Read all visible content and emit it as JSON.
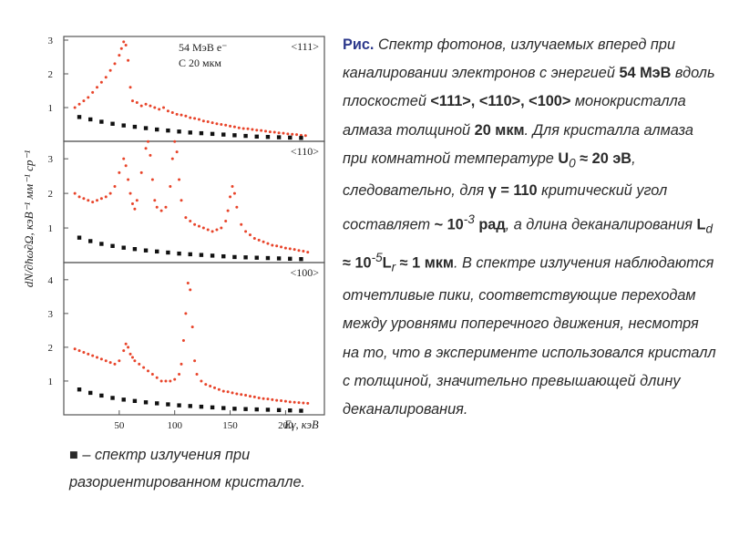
{
  "caption": {
    "head": "Рис.",
    "t1": " Спектр фотонов, излучаемых вперед при каналировании электронов с энергией ",
    "energy": "54 МэВ",
    "t2": " вдоль плоскостей ",
    "planes": "<111>, <110>, <100>",
    "t3": " монокристалла алмаза толщиной ",
    "thickness": "20 мкм",
    "t4": ". Для кристалла алмаза при комнатной температуре ",
    "u_sym": "U",
    "u_sub": "0",
    "u_val": " ≈ 20 эВ",
    "t5": ", следовательно, для ",
    "gamma": "γ = 110",
    "t6": " критический угол составляет ",
    "angle": "~ 10",
    "angle_exp": "-3",
    "angle_unit": " рад",
    "t7": ", а длина деканалирования ",
    "ld_sym": "L",
    "ld_sub": "d",
    "ld_mid": " ≈ 10",
    "ld_exp": "-5",
    "lr_sym": "L",
    "lr_sub": "r",
    "ld_val": " ≈ 1 мкм",
    "t8": ". В спектре излучения наблюдаются отчетливые пики, соответствующие переходам между уровнями поперечного движения, несмотря на то, что в эксперименте использовался кристалл с толщиной, значительно превышающей длину деканалирования."
  },
  "note": {
    "symbol": "■",
    "text": " – спектр излучения при разориентированном кристалле."
  },
  "colors": {
    "oriented": "#e8442a",
    "random": "#111111",
    "frame": "#555555",
    "caption_head": "#2e3a8c"
  },
  "chart_data": {
    "type": "scatter",
    "ylabel": "dN/∂ħω∂Ω, кэВ⁻¹ мм⁻¹ ср⁻¹",
    "xlabel": "Eγ, кэВ",
    "x_ticks": [
      "50",
      "100",
      "150",
      "200"
    ],
    "xlim": [
      0,
      235
    ],
    "panels": [
      {
        "label": "<111>",
        "annotation": [
          "54 МэВ e⁻",
          "C 20 мкм"
        ],
        "ylim": [
          0,
          3
        ],
        "y_ticks": [
          "1",
          "2",
          "3"
        ],
        "series": [
          {
            "x": [
              10,
              14,
              18,
              22,
              26,
              30,
              34,
              38,
              42,
              46,
              50,
              52,
              54,
              56,
              58,
              60,
              62,
              66,
              70,
              74,
              78,
              82,
              86,
              90,
              94,
              98,
              102,
              106,
              110,
              114,
              118,
              122,
              126,
              130,
              134,
              138,
              142,
              146,
              150,
              154,
              158,
              162,
              166,
              170,
              174,
              178,
              182,
              186,
              190,
              194,
              198,
              202,
              206,
              210,
              214,
              218
            ],
            "y": [
              1.0,
              1.1,
              1.2,
              1.3,
              1.45,
              1.6,
              1.75,
              1.9,
              2.1,
              2.3,
              2.55,
              2.75,
              2.95,
              2.85,
              2.4,
              1.6,
              1.2,
              1.15,
              1.05,
              1.1,
              1.05,
              1.0,
              0.95,
              1.0,
              0.9,
              0.85,
              0.8,
              0.78,
              0.75,
              0.7,
              0.68,
              0.65,
              0.6,
              0.58,
              0.55,
              0.52,
              0.5,
              0.48,
              0.45,
              0.43,
              0.4,
              0.38,
              0.37,
              0.35,
              0.33,
              0.32,
              0.3,
              0.28,
              0.27,
              0.25,
              0.24,
              0.22,
              0.21,
              0.2,
              0.18,
              0.17
            ]
          },
          {
            "x": [
              14,
              24,
              34,
              44,
              54,
              64,
              74,
              84,
              94,
              104,
              114,
              124,
              134,
              144,
              154,
              164,
              174,
              184,
              194,
              204,
              214
            ],
            "y": [
              0.72,
              0.65,
              0.58,
              0.52,
              0.47,
              0.43,
              0.39,
              0.35,
              0.32,
              0.29,
              0.26,
              0.24,
              0.22,
              0.2,
              0.18,
              0.16,
              0.14,
              0.13,
              0.12,
              0.11,
              0.1
            ]
          }
        ]
      },
      {
        "label": "<110>",
        "annotation": [],
        "ylim": [
          0,
          3.4
        ],
        "y_ticks": [
          "1",
          "2",
          "3"
        ],
        "series": [
          {
            "x": [
              10,
              14,
              18,
              22,
              26,
              30,
              34,
              38,
              42,
              46,
              50,
              54,
              56,
              58,
              60,
              62,
              64,
              66,
              70,
              74,
              76,
              78,
              80,
              82,
              84,
              88,
              92,
              96,
              98,
              100,
              102,
              104,
              106,
              110,
              114,
              118,
              122,
              126,
              130,
              134,
              138,
              142,
              146,
              148,
              150,
              152,
              154,
              156,
              160,
              164,
              168,
              172,
              176,
              180,
              184,
              188,
              192,
              196,
              200,
              204,
              208,
              212,
              216,
              220
            ],
            "y": [
              2.0,
              1.9,
              1.85,
              1.8,
              1.75,
              1.8,
              1.85,
              1.9,
              2.0,
              2.2,
              2.6,
              3.0,
              2.8,
              2.4,
              2.0,
              1.7,
              1.55,
              1.8,
              2.6,
              3.3,
              3.5,
              3.1,
              2.4,
              1.8,
              1.6,
              1.5,
              1.6,
              2.2,
              3.0,
              3.5,
              3.2,
              2.4,
              1.8,
              1.3,
              1.2,
              1.1,
              1.05,
              1.0,
              0.95,
              0.9,
              0.95,
              1.0,
              1.2,
              1.5,
              1.9,
              2.2,
              2.0,
              1.6,
              1.1,
              0.9,
              0.8,
              0.7,
              0.65,
              0.6,
              0.55,
              0.5,
              0.48,
              0.45,
              0.42,
              0.4,
              0.38,
              0.35,
              0.33,
              0.3
            ]
          },
          {
            "x": [
              14,
              24,
              34,
              44,
              54,
              64,
              74,
              84,
              94,
              104,
              114,
              124,
              134,
              144,
              154,
              164,
              174,
              184,
              194,
              204,
              214
            ],
            "y": [
              0.72,
              0.62,
              0.54,
              0.48,
              0.43,
              0.39,
              0.35,
              0.32,
              0.29,
              0.26,
              0.24,
              0.22,
              0.2,
              0.18,
              0.16,
              0.15,
              0.14,
              0.13,
              0.12,
              0.11,
              0.1
            ]
          }
        ]
      },
      {
        "label": "<100>",
        "annotation": [],
        "ylim": [
          0,
          4.4
        ],
        "y_ticks": [
          "1",
          "2",
          "3",
          "4"
        ],
        "series": [
          {
            "x": [
              10,
              14,
              18,
              22,
              26,
              30,
              34,
              38,
              42,
              46,
              50,
              54,
              56,
              58,
              60,
              62,
              64,
              68,
              72,
              76,
              80,
              84,
              88,
              92,
              96,
              100,
              104,
              106,
              108,
              110,
              112,
              114,
              116,
              118,
              120,
              124,
              128,
              132,
              136,
              140,
              144,
              148,
              152,
              156,
              160,
              164,
              168,
              172,
              176,
              180,
              184,
              188,
              192,
              196,
              200,
              204,
              208,
              212,
              216,
              220
            ],
            "y": [
              1.95,
              1.9,
              1.85,
              1.8,
              1.75,
              1.7,
              1.65,
              1.6,
              1.55,
              1.5,
              1.6,
              1.9,
              2.1,
              2.0,
              1.8,
              1.7,
              1.6,
              1.5,
              1.4,
              1.3,
              1.2,
              1.1,
              1.0,
              1.0,
              1.0,
              1.05,
              1.2,
              1.5,
              2.2,
              3.0,
              3.9,
              3.7,
              2.6,
              1.6,
              1.2,
              1.0,
              0.9,
              0.85,
              0.8,
              0.75,
              0.7,
              0.68,
              0.65,
              0.62,
              0.6,
              0.58,
              0.55,
              0.53,
              0.5,
              0.48,
              0.47,
              0.45,
              0.43,
              0.42,
              0.4,
              0.38,
              0.37,
              0.36,
              0.35,
              0.34
            ]
          },
          {
            "x": [
              14,
              24,
              34,
              44,
              54,
              64,
              74,
              84,
              94,
              104,
              114,
              124,
              134,
              144,
              154,
              164,
              174,
              184,
              194,
              204,
              214
            ],
            "y": [
              0.75,
              0.65,
              0.57,
              0.5,
              0.45,
              0.41,
              0.37,
              0.34,
              0.31,
              0.28,
              0.26,
              0.24,
              0.22,
              0.2,
              0.18,
              0.17,
              0.16,
              0.15,
              0.14,
              0.13,
              0.12
            ]
          }
        ]
      }
    ]
  }
}
